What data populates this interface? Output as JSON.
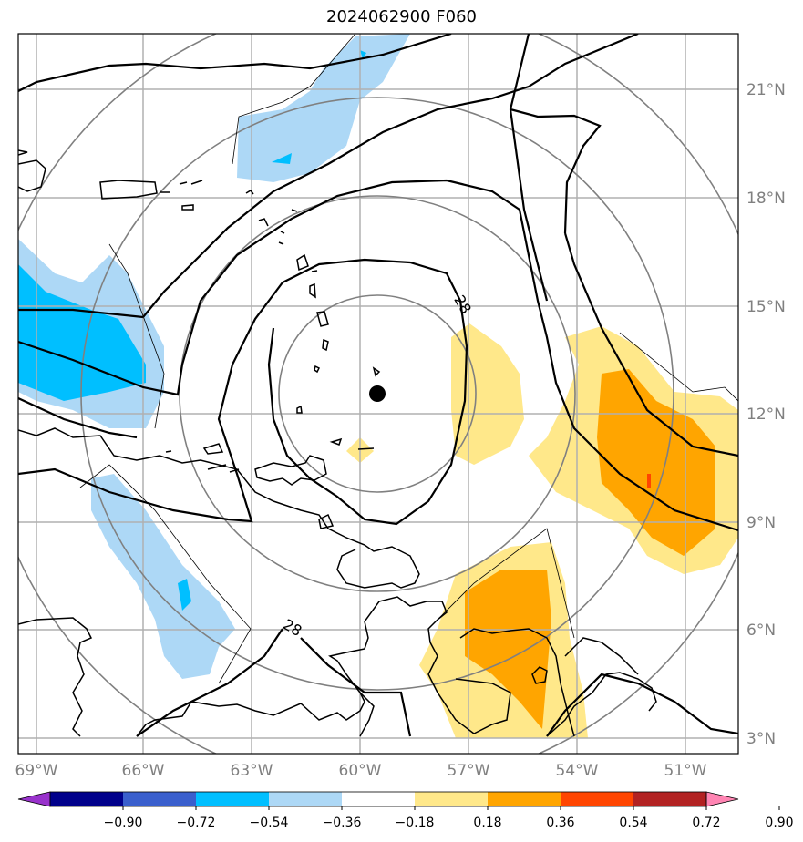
{
  "title": "2024062900 F060",
  "map": {
    "lon_labels": [
      "69°W",
      "66°W",
      "63°W",
      "60°W",
      "57°W",
      "54°W",
      "51°W"
    ],
    "lat_labels": [
      "21°N",
      "18°N",
      "15°N",
      "12°N",
      "9°N",
      "6°N",
      "3°N"
    ],
    "contour_label": "28",
    "storm_center": {
      "lon": -59.4,
      "lat": 12.6
    },
    "grid_visible": true,
    "range_rings_visible": true
  },
  "colorbar": {
    "ticks": [
      "−0.90",
      "−0.72",
      "−0.54",
      "−0.36",
      "−0.18",
      "0.18",
      "0.36",
      "0.54",
      "0.72",
      "0.90"
    ],
    "colors": [
      "#9932cc",
      "#00008b",
      "#3a5fcd",
      "#00bfff",
      "#add8f6",
      "#ffffff",
      "#ffe88a",
      "#ffa500",
      "#ff4500",
      "#b22222",
      "#ff85b3"
    ],
    "extend": "both"
  },
  "colors": {
    "grid": "#b0b0b0",
    "rings": "#808080",
    "coast": "#000000"
  }
}
